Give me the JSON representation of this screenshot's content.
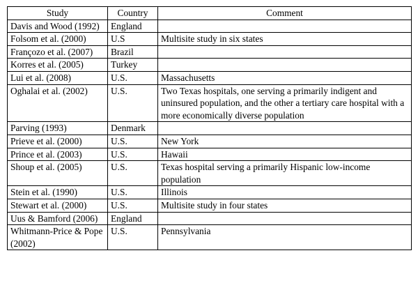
{
  "headers": [
    "Study",
    "Country",
    "Comment"
  ],
  "rows": [
    [
      "Davis and Wood (1992)",
      "England",
      ""
    ],
    [
      "Folsom et al. (2000)",
      "U.S",
      "Multisite study in six states"
    ],
    [
      "Françozo et al. (2007)",
      "Brazil",
      ""
    ],
    [
      "Korres et al. (2005)",
      "Turkey",
      ""
    ],
    [
      "Lui et al. (2008)",
      "U.S.",
      "Massachusetts"
    ],
    [
      "Oghalai et al. (2002)",
      "U.S.",
      "Two Texas hospitals, one serving a primarily indigent and uninsured population, and the other a tertiary care hospital with a more economically diverse population"
    ],
    [
      "Parving (1993)",
      "Denmark",
      ""
    ],
    [
      "Prieve et al. (2000)",
      "U.S.",
      "New York"
    ],
    [
      "Prince et al. (2003)",
      "U.S.",
      "Hawaii"
    ],
    [
      "Shoup et al. (2005)",
      "U.S.",
      "Texas hospital serving a primarily  Hispanic low-income population"
    ],
    [
      "Stein et al. (1990)",
      "U.S.",
      "Illinois"
    ],
    [
      "Stewart et al. (2000)",
      "U.S.",
      "Multisite study in four states"
    ],
    [
      "Uus & Bamford (2006)",
      "England",
      ""
    ],
    [
      "Whitmann-Price & Pope (2002)",
      "U.S.",
      "Pennsylvania"
    ]
  ]
}
